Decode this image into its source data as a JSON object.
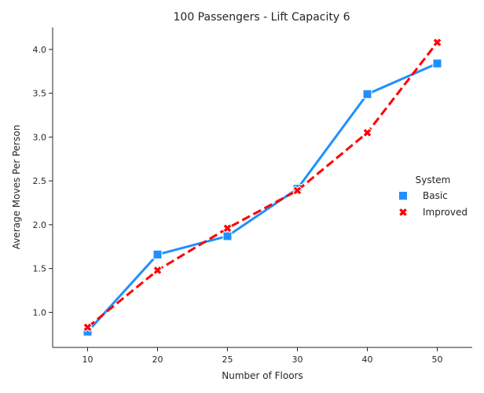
{
  "chart_data": {
    "type": "line",
    "title": "100 Passengers - Lift Capacity 6",
    "xlabel": "Number of Floors",
    "ylabel": "Average Moves Per Person",
    "categories": [
      "10",
      "20",
      "25",
      "30",
      "40",
      "50"
    ],
    "ylim": [
      0.6,
      4.25
    ],
    "yticks": [
      "1.0",
      "1.5",
      "2.0",
      "2.5",
      "3.0",
      "3.5",
      "4.0"
    ],
    "grid": false,
    "legend": {
      "title": "System",
      "placement": "right"
    },
    "series": [
      {
        "name": "Basic",
        "values": [
          0.78,
          1.66,
          1.87,
          2.41,
          3.49,
          3.84
        ],
        "color": "#1e90ff",
        "marker": "square",
        "linestyle": "solid"
      },
      {
        "name": "Improved",
        "values": [
          0.83,
          1.48,
          1.96,
          2.39,
          3.05,
          4.08
        ],
        "color": "#ff0000",
        "marker": "x",
        "linestyle": "dashed"
      }
    ]
  }
}
